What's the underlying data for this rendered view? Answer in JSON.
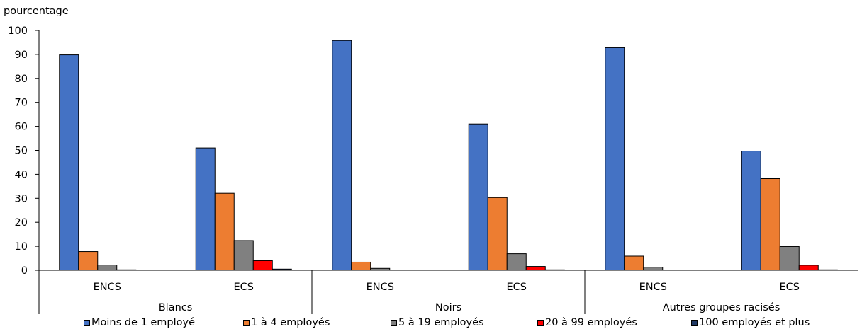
{
  "chart_data": {
    "type": "bar",
    "ylabel": "pourcentage",
    "ylim": [
      0,
      100
    ],
    "yticks": [
      "0",
      "10",
      "20",
      "30",
      "40",
      "50",
      "60",
      "70",
      "80",
      "90",
      "100"
    ],
    "grid": false,
    "legend_position": "bottom",
    "groups": [
      {
        "label": "Blancs",
        "categories": [
          "ENCS",
          "ECS"
        ]
      },
      {
        "label": "Noirs",
        "categories": [
          "ENCS",
          "ECS"
        ]
      },
      {
        "label": "Autres groupes racisés",
        "categories": [
          "ENCS",
          "ECS"
        ]
      }
    ],
    "categories": [
      "Blancs - ENCS",
      "Blancs - ECS",
      "Noirs - ENCS",
      "Noirs - ECS",
      "Autres groupes racisés - ENCS",
      "Autres groupes racisés - ECS"
    ],
    "series": [
      {
        "name": "Moins de 1 employé",
        "color": "#4472C4",
        "values": [
          89.8,
          51.0,
          95.8,
          61.0,
          92.8,
          49.7
        ]
      },
      {
        "name": "1 à 4 employés",
        "color": "#ED7D31",
        "values": [
          7.8,
          32.1,
          3.4,
          30.3,
          5.9,
          38.2
        ]
      },
      {
        "name": "5 à 19 employés",
        "color": "#808080",
        "values": [
          2.2,
          12.4,
          0.8,
          6.9,
          1.3,
          9.9
        ]
      },
      {
        "name": "20 à 99 employés",
        "color": "#FF0000",
        "values": [
          0.2,
          4.0,
          0.1,
          1.6,
          0.1,
          2.1
        ]
      },
      {
        "name": "100 employés et plus",
        "color": "#1F3864",
        "values": [
          0.0,
          0.5,
          0.0,
          0.2,
          0.0,
          0.2
        ]
      }
    ]
  }
}
